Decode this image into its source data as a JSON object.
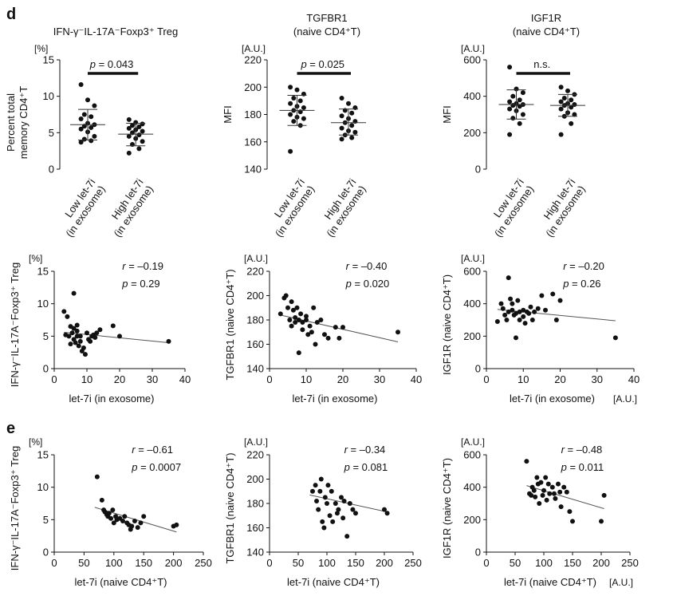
{
  "panel_labels": {
    "d": "d",
    "e": "e"
  },
  "chart_data": [
    {
      "id": "d1",
      "type": "scatter",
      "subtype": "dot-plot",
      "title": "IFN-γ⁻IL-17A⁻Foxp3⁺ Treg",
      "subtitle": "",
      "unit": "[%]",
      "ylabel": "Percent total memory CD4⁺T",
      "ylim": [
        0,
        15
      ],
      "yticks": [
        0,
        5,
        10,
        15
      ],
      "categories": [
        "Low let-7i (in exosome)",
        "High let-7i (in exosome)"
      ],
      "bracket": "p = 0.043",
      "series": [
        {
          "values": [
            11.6,
            9.5,
            8.7,
            7.5,
            7.2,
            6.9,
            6.3,
            6.1,
            5.9,
            5.7,
            5.5,
            5.1,
            4.5,
            4.1,
            3.9,
            3.7
          ],
          "mean": 6.1,
          "sd_low": 4.0,
          "sd_high": 8.2
        },
        {
          "values": [
            6.8,
            6.4,
            6.2,
            6.0,
            5.8,
            5.6,
            5.4,
            5.2,
            5.0,
            4.7,
            4.5,
            4.2,
            3.8,
            3.4,
            2.8,
            2.2
          ],
          "mean": 4.8,
          "sd_low": 3.2,
          "sd_high": 6.3
        }
      ]
    },
    {
      "id": "d2",
      "type": "scatter",
      "subtype": "dot-plot",
      "title": "TGFBR1",
      "subtitle": "(naive CD4⁺T)",
      "unit": "[A.U.]",
      "ylabel": "MFI",
      "ylim": [
        140,
        220
      ],
      "yticks": [
        140,
        160,
        180,
        200,
        220
      ],
      "categories": [
        "Low let-7i (in exosome)",
        "High let-7i (in exosome)"
      ],
      "bracket": "p = 0.025",
      "series": [
        {
          "values": [
            200,
            198,
            195,
            192,
            190,
            188,
            186,
            185,
            183,
            182,
            180,
            178,
            177,
            175,
            172,
            153
          ],
          "mean": 183,
          "sd_low": 172,
          "sd_high": 194
        },
        {
          "values": [
            192,
            188,
            185,
            183,
            181,
            179,
            177,
            175,
            174,
            172,
            170,
            168,
            167,
            165,
            163,
            162
          ],
          "mean": 174,
          "sd_low": 165,
          "sd_high": 184
        }
      ]
    },
    {
      "id": "d3",
      "type": "scatter",
      "subtype": "dot-plot",
      "title": "IGF1R",
      "subtitle": "(naive CD4⁺T)",
      "unit": "[A.U.]",
      "ylabel": "MFI",
      "ylim": [
        0,
        600
      ],
      "yticks": [
        0,
        200,
        400,
        600
      ],
      "categories": [
        "Low let-7i (in exosome)",
        "High let-7i (in exosome)"
      ],
      "bracket": "n.s.",
      "series": [
        {
          "values": [
            560,
            440,
            420,
            400,
            380,
            370,
            360,
            355,
            350,
            345,
            330,
            320,
            300,
            280,
            250,
            190
          ],
          "mean": 355,
          "sd_low": 275,
          "sd_high": 435
        },
        {
          "values": [
            450,
            430,
            410,
            390,
            380,
            370,
            360,
            355,
            350,
            340,
            330,
            310,
            300,
            290,
            250,
            190
          ],
          "mean": 350,
          "sd_low": 290,
          "sd_high": 410
        }
      ]
    },
    {
      "id": "r1",
      "type": "scatter",
      "unit": "[%]",
      "ylabel": "IFN-γ⁻IL-17A⁻Foxp3⁺ Treg",
      "xlabel": "let-7i (in exosome)",
      "x_unit": "",
      "xlim": [
        0,
        40
      ],
      "xticks": [
        0,
        10,
        20,
        30,
        40
      ],
      "ylim": [
        0,
        15
      ],
      "yticks": [
        0,
        5,
        10,
        15
      ],
      "stats": {
        "r": "r = –0.19",
        "p": "p = 0.29"
      },
      "trend": {
        "x": [
          3,
          35
        ],
        "y": [
          5.6,
          4.0
        ]
      },
      "points": {
        "x": [
          3,
          4,
          5,
          5.5,
          6,
          6,
          6.5,
          7,
          7,
          7.5,
          8,
          8,
          8.5,
          9,
          9.5,
          10,
          10.5,
          11,
          11.5,
          12,
          12.5,
          13,
          14,
          3.5,
          4.5,
          5,
          6,
          7,
          18,
          20,
          35
        ],
        "y": [
          8.8,
          8.0,
          6.5,
          5.5,
          11.6,
          4.5,
          4.0,
          5.8,
          6.7,
          3.5,
          5.0,
          4.2,
          2.7,
          3.2,
          2.2,
          5.5,
          4.5,
          4.2,
          5.0,
          5.2,
          4.8,
          5.5,
          6.0,
          5.2,
          5.0,
          3.8,
          6.2,
          5.0,
          6.6,
          5.0,
          4.2
        ]
      }
    },
    {
      "id": "r2",
      "type": "scatter",
      "unit": "[A.U.]",
      "ylabel": "TGFBR1 (naive CD4⁺T)",
      "xlabel": "let-7i (in exosome)",
      "x_unit": "",
      "xlim": [
        0,
        40
      ],
      "xticks": [
        0,
        10,
        20,
        30,
        40
      ],
      "ylim": [
        140,
        220
      ],
      "yticks": [
        140,
        160,
        180,
        200,
        220
      ],
      "stats": {
        "r": "r = –0.40",
        "p": "p = 0.020"
      },
      "trend": {
        "x": [
          3,
          35
        ],
        "y": [
          184,
          162
        ]
      },
      "points": {
        "x": [
          3,
          4,
          4.5,
          5,
          5.5,
          6,
          6,
          6.5,
          7,
          7,
          7.5,
          8,
          8,
          8.5,
          9,
          9,
          10,
          10,
          10.5,
          11,
          11.5,
          12,
          12.5,
          13,
          14,
          15,
          16,
          18,
          19,
          20,
          35
        ],
        "y": [
          185,
          198,
          200,
          190,
          180,
          195,
          175,
          188,
          182,
          178,
          190,
          180,
          153,
          185,
          178,
          172,
          183,
          180,
          168,
          175,
          170,
          190,
          160,
          178,
          180,
          168,
          165,
          174,
          165,
          174,
          170
        ]
      }
    },
    {
      "id": "r3",
      "type": "scatter",
      "unit": "[A.U.]",
      "ylabel": "IGF1R (naive CD4⁺T)",
      "xlabel": "let-7i (in exosome)",
      "x_unit": "[A.U.]",
      "xlim": [
        0,
        40
      ],
      "xticks": [
        0,
        10,
        20,
        30,
        40
      ],
      "ylim": [
        0,
        600
      ],
      "yticks": [
        0,
        200,
        400,
        600
      ],
      "stats": {
        "r": "r = –0.20",
        "p": "p = 0.26"
      },
      "trend": {
        "x": [
          3,
          35
        ],
        "y": [
          365,
          295
        ]
      },
      "points": {
        "x": [
          3,
          4,
          4.5,
          5,
          5.5,
          6,
          6,
          6.5,
          7,
          7,
          7.5,
          8,
          8,
          8.5,
          9,
          9,
          10,
          10,
          10.5,
          11,
          11.5,
          12,
          12.5,
          13,
          14,
          15,
          16,
          18,
          19,
          20,
          35
        ],
        "y": [
          290,
          400,
          370,
          330,
          300,
          560,
          350,
          430,
          400,
          360,
          330,
          340,
          190,
          420,
          350,
          300,
          360,
          320,
          280,
          350,
          340,
          380,
          300,
          350,
          370,
          450,
          360,
          460,
          300,
          420,
          190
        ]
      }
    },
    {
      "id": "e1",
      "type": "scatter",
      "unit": "[%]",
      "ylabel": "IFN-γ⁻IL-17A⁻Foxp3⁺ Treg",
      "xlabel": "let-7i (naive CD4⁺T)",
      "x_unit": "",
      "xlim": [
        0,
        250
      ],
      "xticks": [
        0,
        50,
        100,
        150,
        200,
        250
      ],
      "ylim": [
        0,
        15
      ],
      "yticks": [
        0,
        5,
        10,
        15
      ],
      "stats": {
        "r": "r = –0.61",
        "p": "p = 0.0007"
      },
      "trend": {
        "x": [
          68,
          205
        ],
        "y": [
          6.9,
          3.1
        ]
      },
      "points": {
        "x": [
          72,
          80,
          83,
          85,
          88,
          90,
          92,
          95,
          98,
          100,
          103,
          105,
          110,
          115,
          118,
          122,
          125,
          128,
          130,
          135,
          140,
          145,
          150,
          200,
          205
        ],
        "y": [
          11.6,
          8.0,
          6.5,
          6.2,
          5.8,
          5.5,
          6.0,
          5.2,
          6.5,
          4.5,
          5.5,
          5.0,
          5.2,
          4.8,
          5.5,
          4.5,
          4.2,
          3.5,
          4.0,
          4.8,
          3.8,
          4.5,
          5.5,
          4.0,
          4.2
        ]
      }
    },
    {
      "id": "e2",
      "type": "scatter",
      "unit": "[A.U.]",
      "ylabel": "TGFBR1 (naive CD4⁺T)",
      "xlabel": "let-7i (naive CD4⁺T)",
      "x_unit": "",
      "xlim": [
        0,
        250
      ],
      "xticks": [
        0,
        50,
        100,
        150,
        200,
        250
      ],
      "ylim": [
        140,
        220
      ],
      "yticks": [
        140,
        160,
        180,
        200,
        220
      ],
      "stats": {
        "r": "r = –0.34",
        "p": "p = 0.081"
      },
      "trend": {
        "x": [
          70,
          205
        ],
        "y": [
          187,
          173
        ]
      },
      "points": {
        "x": [
          75,
          80,
          82,
          85,
          88,
          90,
          92,
          95,
          97,
          100,
          102,
          105,
          108,
          110,
          115,
          118,
          120,
          125,
          128,
          130,
          135,
          140,
          145,
          150,
          200,
          205
        ],
        "y": [
          190,
          195,
          182,
          175,
          190,
          200,
          165,
          160,
          185,
          180,
          195,
          170,
          190,
          165,
          180,
          172,
          175,
          185,
          168,
          182,
          153,
          180,
          175,
          172,
          175,
          172
        ]
      }
    },
    {
      "id": "e3",
      "type": "scatter",
      "unit": "[A.U.]",
      "ylabel": "IGF1R (naive CD4⁺T)",
      "xlabel": "let-7i (naive CD4⁺T)",
      "x_unit": "[A.U.]",
      "xlim": [
        0,
        250
      ],
      "xticks": [
        0,
        50,
        100,
        150,
        200,
        250
      ],
      "ylim": [
        0,
        600
      ],
      "yticks": [
        0,
        200,
        400,
        600
      ],
      "stats": {
        "r": "r = –0.48",
        "p": "p = 0.011"
      },
      "trend": {
        "x": [
          70,
          205
        ],
        "y": [
          410,
          268
        ]
      },
      "points": {
        "x": [
          70,
          75,
          78,
          80,
          83,
          85,
          88,
          90,
          92,
          95,
          98,
          100,
          103,
          105,
          108,
          110,
          115,
          118,
          120,
          125,
          128,
          130,
          135,
          140,
          145,
          150,
          200,
          205
        ],
        "y": [
          560,
          360,
          350,
          400,
          380,
          340,
          460,
          420,
          300,
          430,
          350,
          380,
          460,
          320,
          420,
          360,
          400,
          360,
          330,
          420,
          370,
          280,
          400,
          370,
          250,
          190,
          190,
          350
        ]
      }
    }
  ]
}
